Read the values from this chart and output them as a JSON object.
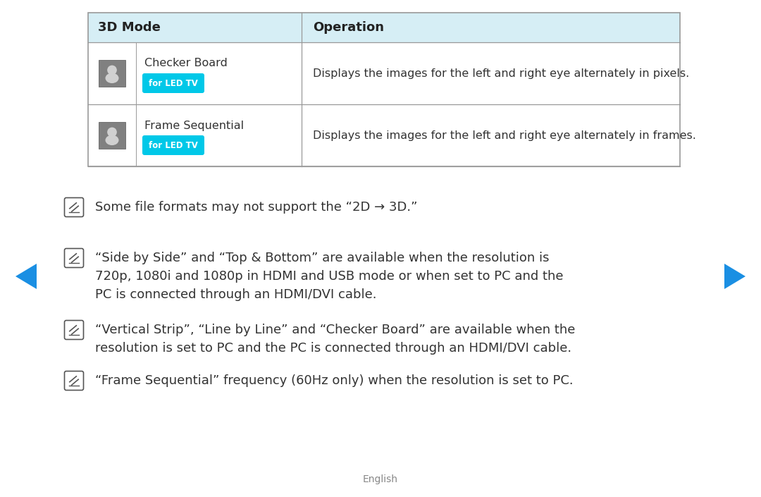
{
  "bg_color": "#ffffff",
  "table_header_bg": "#d6eef5",
  "table_border_color": "#999999",
  "header_col1": "3D Mode",
  "header_col2": "Operation",
  "row1_mode": "Checker Board",
  "row1_badge": "for LED TV",
  "row1_op": "Displays the images for the left and right eye alternately in pixels.",
  "row2_mode": "Frame Sequential",
  "row2_badge": "for LED TV",
  "row2_op": "Displays the images for the left and right eye alternately in frames.",
  "badge_color": "#00c8e8",
  "badge_text_color": "#ffffff",
  "note1": "Some file formats may not support the “2D → 3D.”",
  "note2_line1": "“Side by Side” and “Top & Bottom” are available when the resolution is",
  "note2_line2": "720p, 1080i and 1080p in HDMI and USB mode or when set to PC and the",
  "note2_line3": "PC is connected through an HDMI/DVI cable.",
  "note3_line1": "“Vertical Strip”, “Line by Line” and “Checker Board” are available when the",
  "note3_line2": "resolution is set to PC and the PC is connected through an HDMI/DVI cable.",
  "note4": "“Frame Sequential” frequency (60Hz only) when the resolution is set to PC.",
  "footer_text": "English",
  "arrow_color": "#1a8fe3",
  "text_color": "#333333",
  "icon_color": "#666666"
}
